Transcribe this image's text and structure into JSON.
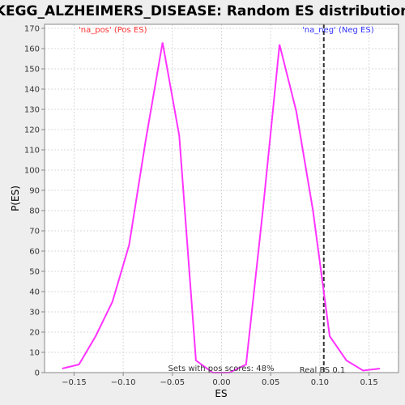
{
  "chart_data": {
    "type": "line",
    "title": "KEGG_ALZHEIMERS_DISEASE: Random ES distribution",
    "xlabel": "ES",
    "ylabel": "P(ES)",
    "xlim": [
      -0.18,
      0.18
    ],
    "ylim": [
      0,
      172
    ],
    "x_ticks": [
      -0.15,
      -0.1,
      -0.05,
      0.0,
      0.05,
      0.1,
      0.15
    ],
    "x_tick_labels": [
      "−0.15",
      "−0.10",
      "−0.05",
      "0.00",
      "0.05",
      "0.10",
      "0.15"
    ],
    "y_ticks": [
      0,
      10,
      20,
      30,
      40,
      50,
      60,
      70,
      80,
      90,
      100,
      110,
      120,
      130,
      140,
      150,
      160,
      170
    ],
    "grid": true,
    "series": [
      {
        "color": "#ff33ff",
        "x": [
          -0.162,
          -0.145,
          -0.128,
          -0.111,
          -0.094,
          -0.077,
          -0.06,
          -0.043,
          -0.026,
          -0.009,
          0.008,
          0.025,
          0.042,
          0.059,
          0.076,
          0.093,
          0.11,
          0.127,
          0.144,
          0.161
        ],
        "y": [
          2,
          4,
          18,
          35,
          63,
          115,
          163,
          117,
          6,
          0,
          0,
          4,
          80,
          162,
          129,
          80,
          18,
          6,
          1,
          2
        ]
      }
    ],
    "legend": {
      "pos_label": "'na_pos' (Pos ES)",
      "neg_label": "'na_neg' (Neg ES)",
      "pos_color": "#ff3333",
      "neg_color": "#3333ff"
    },
    "real_es": {
      "value": 0.104,
      "label": "Real ES 0.1"
    },
    "annotation": "Sets with pos scores: 48%"
  }
}
